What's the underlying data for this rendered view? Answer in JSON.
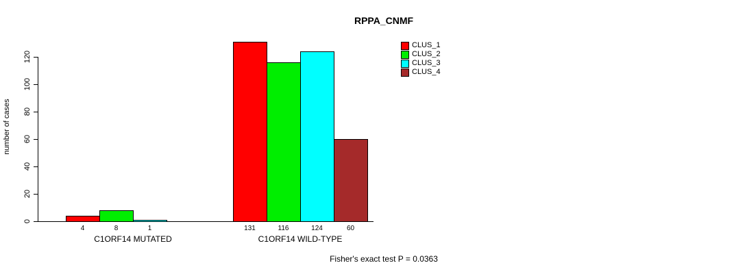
{
  "chart_data": {
    "type": "bar",
    "title": "RPPA_CNMF",
    "ylabel": "number of cases",
    "xlabel": "",
    "groups": [
      "C1ORF14 MUTATED",
      "C1ORF14 WILD-TYPE"
    ],
    "series": [
      {
        "name": "CLUS_1",
        "color": "#FF0000",
        "values": [
          4,
          131
        ]
      },
      {
        "name": "CLUS_2",
        "color": "#00EE00",
        "values": [
          8,
          116
        ]
      },
      {
        "name": "CLUS_3",
        "color": "#00FFFF",
        "values": [
          1,
          124
        ]
      },
      {
        "name": "CLUS_4",
        "color": "#A52A2A",
        "values": [
          0,
          60
        ]
      }
    ],
    "yticks": [
      0,
      20,
      40,
      60,
      80,
      100,
      120
    ],
    "ylim": [
      0,
      135
    ],
    "grid": false,
    "legend_position": "top-right",
    "legend_entries": [
      "CLUS_1",
      "CLUS_2",
      "CLUS_3",
      "CLUS_4"
    ],
    "annotation": "Fisher's exact test P = 0.0363"
  }
}
